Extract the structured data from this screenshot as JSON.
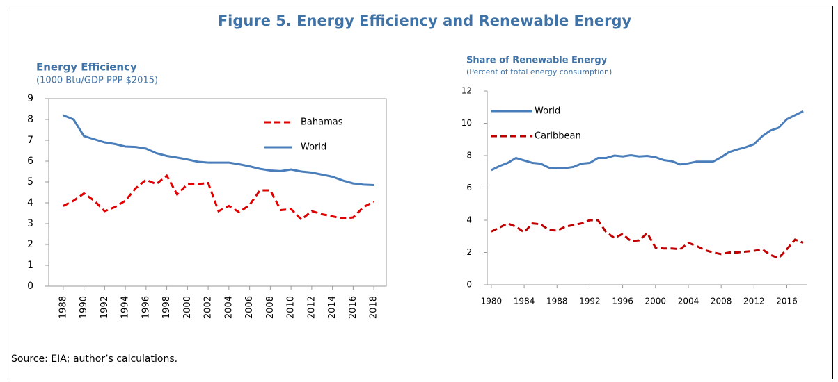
{
  "title": "Figure 5. Energy Efficiency and Renewable Energy",
  "source": "Source: EIA; author’s calculations.",
  "chart_data": [
    {
      "type": "line",
      "title": "Energy Efficiency",
      "subtitle": "(1000 Btu/GDP PPP $2015)",
      "x": [
        1988,
        1989,
        1990,
        1991,
        1992,
        1993,
        1994,
        1995,
        1996,
        1997,
        1998,
        1999,
        2000,
        2001,
        2002,
        2003,
        2004,
        2005,
        2006,
        2007,
        2008,
        2009,
        2010,
        2011,
        2012,
        2013,
        2014,
        2015,
        2016,
        2017,
        2018
      ],
      "series": [
        {
          "name": "Bahamas",
          "color": "#e00000",
          "dash": true,
          "values": [
            3.85,
            4.1,
            4.45,
            4.1,
            3.6,
            3.8,
            4.1,
            4.7,
            5.1,
            4.9,
            5.3,
            4.4,
            4.9,
            4.9,
            4.95,
            3.6,
            3.85,
            3.55,
            3.9,
            4.6,
            4.6,
            3.65,
            3.7,
            3.2,
            3.6,
            3.45,
            3.35,
            3.25,
            3.3,
            3.8,
            4.05
          ]
        },
        {
          "name": "World",
          "color": "#4a7ebb",
          "dash": false,
          "values": [
            8.2,
            8.0,
            7.2,
            7.05,
            6.9,
            6.82,
            6.7,
            6.68,
            6.6,
            6.38,
            6.25,
            6.17,
            6.08,
            5.97,
            5.93,
            5.93,
            5.93,
            5.85,
            5.75,
            5.63,
            5.55,
            5.52,
            5.6,
            5.5,
            5.45,
            5.35,
            5.25,
            5.07,
            4.93,
            4.87,
            4.85
          ]
        }
      ],
      "xlim": [
        1986.6,
        2019.2
      ],
      "ylim": [
        0,
        9
      ],
      "xticks": [
        1988,
        1990,
        1992,
        1994,
        1996,
        1998,
        2000,
        2002,
        2004,
        2006,
        2008,
        2010,
        2012,
        2014,
        2016,
        2018
      ],
      "yticks": [
        0,
        1,
        2,
        3,
        4,
        5,
        6,
        7,
        8,
        9
      ]
    },
    {
      "type": "line",
      "title": "Share of Renewable Energy",
      "subtitle": "(Percent of total energy consumption)",
      "x": [
        1980,
        1981,
        1982,
        1983,
        1984,
        1985,
        1986,
        1987,
        1988,
        1989,
        1990,
        1991,
        1992,
        1993,
        1994,
        1995,
        1996,
        1997,
        1998,
        1999,
        2000,
        2001,
        2002,
        2003,
        2004,
        2005,
        2006,
        2007,
        2008,
        2009,
        2010,
        2011,
        2012,
        2013,
        2014,
        2015,
        2016,
        2017,
        2018
      ],
      "series": [
        {
          "name": "World",
          "color": "#4a7ebb",
          "dash": false,
          "values": [
            7.1,
            7.35,
            7.55,
            7.85,
            7.7,
            7.55,
            7.5,
            7.25,
            7.22,
            7.22,
            7.3,
            7.5,
            7.55,
            7.85,
            7.85,
            8.0,
            7.95,
            8.02,
            7.95,
            7.98,
            7.9,
            7.72,
            7.65,
            7.45,
            7.52,
            7.62,
            7.62,
            7.62,
            7.9,
            8.22,
            8.38,
            8.52,
            8.7,
            9.2,
            9.55,
            9.72,
            10.25,
            10.5,
            10.75
          ]
        },
        {
          "name": "Caribbean",
          "color": "#c00000",
          "dash": true,
          "values": [
            3.3,
            3.55,
            3.8,
            3.6,
            3.25,
            3.8,
            3.75,
            3.4,
            3.35,
            3.6,
            3.7,
            3.8,
            4.0,
            4.0,
            3.25,
            2.9,
            3.15,
            2.7,
            2.75,
            3.2,
            2.3,
            2.25,
            2.25,
            2.2,
            2.6,
            2.4,
            2.15,
            2.0,
            1.9,
            2.0,
            2.0,
            2.05,
            2.1,
            2.2,
            1.85,
            1.65,
            2.2,
            2.8,
            2.6
          ]
        }
      ],
      "xlim": [
        1979.5,
        2018.5
      ],
      "ylim": [
        0,
        12
      ],
      "xticks": [
        1980,
        1984,
        1988,
        1992,
        1996,
        2000,
        2004,
        2008,
        2012,
        2016
      ],
      "yticks": [
        0,
        2,
        4,
        6,
        8,
        10,
        12
      ]
    }
  ]
}
